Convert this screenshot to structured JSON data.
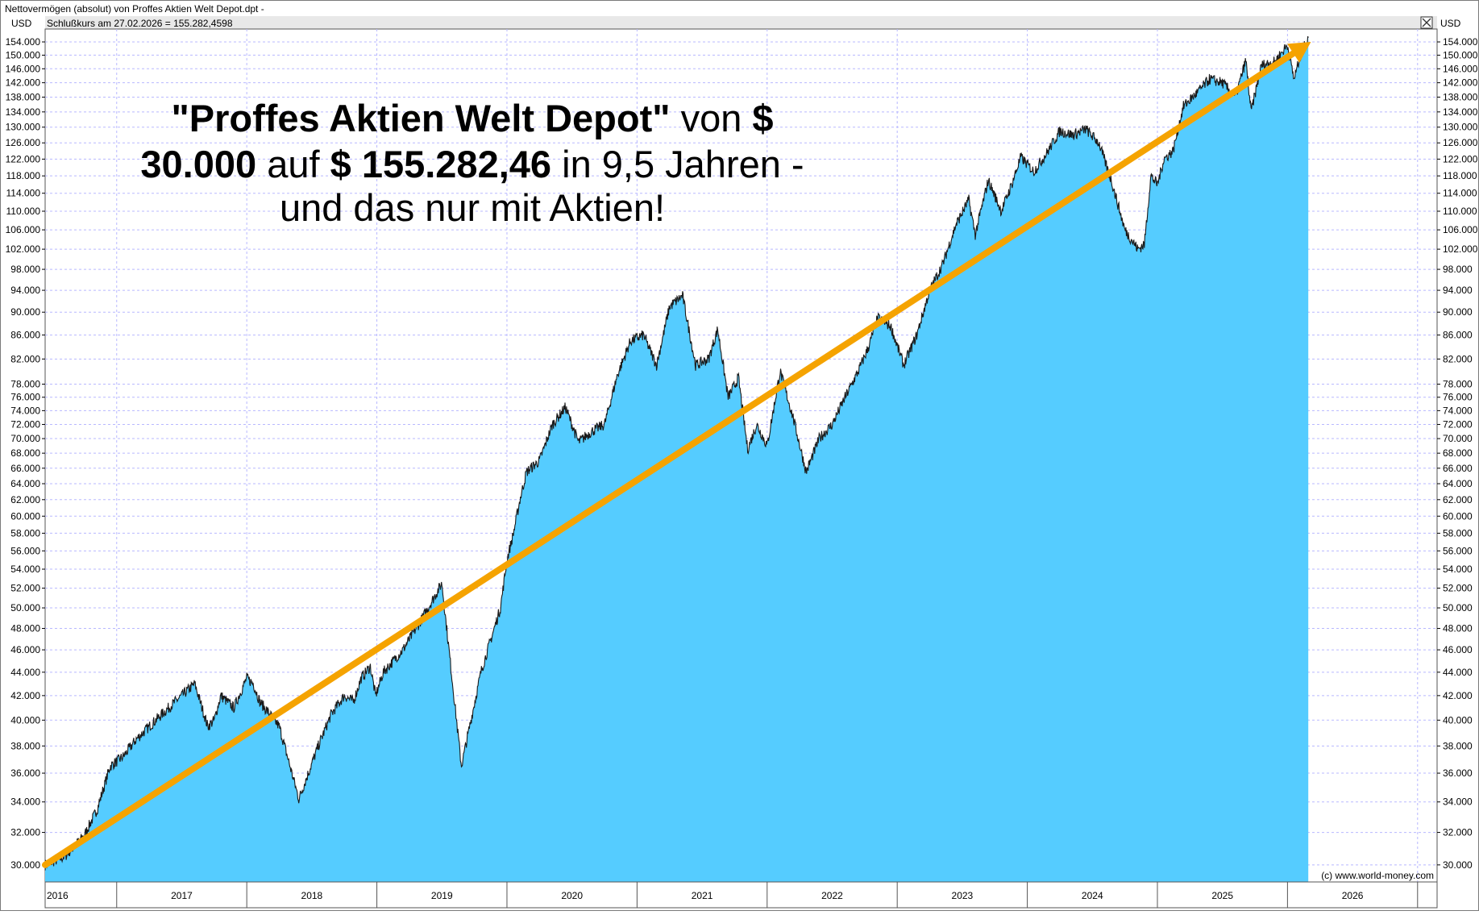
{
  "window": {
    "title": "Nettovermögen (absolut) von Proffes Aktien Welt Depot.dpt -",
    "status": "Schlußkurs am 27.02.2026 = 155.282,4598",
    "close_icon": "close-icon"
  },
  "colors": {
    "fill": "#55ccff",
    "line": "#1a1a1a",
    "trend_arrow": "#f5a300",
    "grid": "#b8b8ff"
  },
  "headline": {
    "line1_bold": "\"Proffes Aktien Welt Depot\"",
    "line1_normal": " von ",
    "line1_bold2": "$",
    "line2_bold": "30.000",
    "line2_normal": " auf ",
    "line2_bold2": "$ 155.282,46",
    "line2_normal2": " in 9,5 Jahren -",
    "line3": "und das nur mit Aktien!"
  },
  "copyright": "(c) www.world-money.com",
  "chart_data": {
    "type": "area",
    "unit_left": "USD",
    "unit_right": "USD",
    "y_scale": "log",
    "ylim": [
      29000,
      158000
    ],
    "y_ticks": [
      "30.000",
      "32.000",
      "34.000",
      "36.000",
      "38.000",
      "40.000",
      "42.000",
      "44.000",
      "46.000",
      "48.000",
      "50.000",
      "52.000",
      "54.000",
      "56.000",
      "58.000",
      "60.000",
      "62.000",
      "64.000",
      "66.000",
      "68.000",
      "70.000",
      "72.000",
      "74.000",
      "76.000",
      "78.000",
      "82.000",
      "86.000",
      "90.000",
      "94.000",
      "98.000",
      "102.000",
      "106.000",
      "110.000",
      "114.000",
      "118.000",
      "122.000",
      "126.000",
      "130.000",
      "134.000",
      "138.000",
      "142.000",
      "146.000",
      "150.000",
      "154.000"
    ],
    "y_tick_values": [
      30000,
      32000,
      34000,
      36000,
      38000,
      40000,
      42000,
      44000,
      46000,
      48000,
      50000,
      52000,
      54000,
      56000,
      58000,
      60000,
      62000,
      64000,
      66000,
      68000,
      70000,
      72000,
      74000,
      76000,
      78000,
      82000,
      86000,
      90000,
      94000,
      98000,
      102000,
      106000,
      110000,
      114000,
      118000,
      122000,
      126000,
      130000,
      134000,
      138000,
      142000,
      146000,
      150000,
      154000
    ],
    "x_labels": [
      "2016",
      "2017",
      "2018",
      "2019",
      "2020",
      "2021",
      "2022",
      "2023",
      "2024",
      "2025",
      "2026"
    ],
    "x_label_values": [
      2016.45,
      2017.5,
      2018.5,
      2019.5,
      2020.5,
      2021.5,
      2022.5,
      2023.5,
      2024.5,
      2025.5,
      2026.5
    ],
    "xlim": [
      2016.45,
      2027.15
    ],
    "grid": true,
    "series": [
      {
        "x": [
          2016.45,
          2016.6,
          2016.75,
          2016.85,
          2016.95,
          2017.05,
          2017.15,
          2017.3,
          2017.45,
          2017.6,
          2017.7,
          2017.75,
          2017.8,
          2017.9,
          2018.0,
          2018.05,
          2018.1,
          2018.25,
          2018.4,
          2018.55,
          2018.65,
          2018.75,
          2018.82,
          2018.88,
          2018.95,
          2018.99,
          2019.05,
          2019.2,
          2019.35,
          2019.5,
          2019.65,
          2019.8,
          2019.95,
          2020.0,
          2020.05,
          2020.1,
          2020.15,
          2020.25,
          2020.35,
          2020.45,
          2020.55,
          2020.65,
          2020.75,
          2020.85,
          2020.95,
          2021.05,
          2021.15,
          2021.25,
          2021.35,
          2021.45,
          2021.55,
          2021.62,
          2021.7,
          2021.78,
          2021.85,
          2021.92,
          2022.0,
          2022.1,
          2022.2,
          2022.3,
          2022.4,
          2022.5,
          2022.6,
          2022.7,
          2022.78,
          2022.85,
          2022.95,
          2023.05,
          2023.15,
          2023.25,
          2023.35,
          2023.45,
          2023.55,
          2023.6,
          2023.7,
          2023.8,
          2023.88,
          2023.95,
          2024.05,
          2024.15,
          2024.25,
          2024.35,
          2024.45,
          2024.55,
          2024.65,
          2024.75,
          2024.85,
          2024.9,
          2024.95,
          2025.0,
          2025.05,
          2025.12,
          2025.2,
          2025.3,
          2025.4,
          2025.5,
          2025.6,
          2025.68,
          2025.72,
          2025.8,
          2025.9,
          2026.0,
          2026.05,
          2026.1,
          2026.16
        ],
        "y": [
          30000,
          30500,
          31800,
          33500,
          36500,
          37200,
          38500,
          40000,
          41500,
          43000,
          39500,
          40000,
          42000,
          41000,
          43500,
          43000,
          41500,
          39500,
          34200,
          38000,
          40500,
          42000,
          41500,
          43500,
          44500,
          42000,
          44000,
          46000,
          49000,
          52500,
          36500,
          44000,
          50000,
          55000,
          58000,
          62000,
          65500,
          67000,
          72000,
          74500,
          69500,
          71000,
          72000,
          79500,
          85000,
          86000,
          81000,
          91000,
          93000,
          81000,
          82000,
          87000,
          76000,
          79000,
          68500,
          72000,
          69000,
          80000,
          73000,
          65500,
          70000,
          72000,
          76000,
          80000,
          84000,
          89000,
          87500,
          81000,
          86000,
          94000,
          99000,
          107000,
          112500,
          105000,
          117000,
          110000,
          116000,
          122500,
          119000,
          123500,
          129000,
          128000,
          129500,
          126000,
          116500,
          106000,
          102000,
          103000,
          118000,
          116000,
          122000,
          124000,
          135500,
          139000,
          143000,
          142000,
          138000,
          148500,
          134000,
          147000,
          148000,
          153000,
          143000,
          150000,
          155282
        ]
      }
    ],
    "trend_arrow": {
      "from": [
        2016.45,
        30000
      ],
      "to": [
        2026.18,
        154000
      ]
    }
  }
}
